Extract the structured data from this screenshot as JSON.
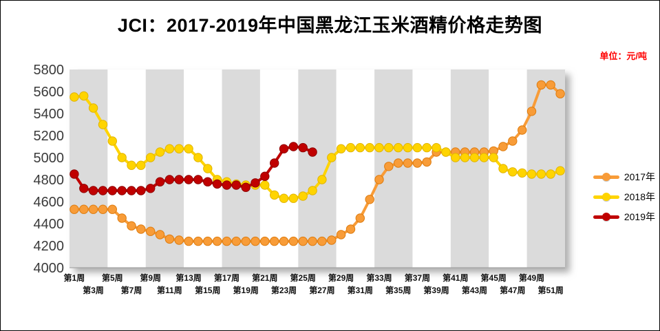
{
  "chart_data": {
    "type": "line",
    "title": "JCI：2017-2019年中国黑龙江玉米酒精价格走势图",
    "unit_label": "单位：元/吨",
    "ylim": [
      4000,
      5800
    ],
    "yticks": [
      4000,
      4200,
      4400,
      4600,
      4800,
      5000,
      5200,
      5400,
      5600,
      5800
    ],
    "x_weeks": 52,
    "xtick_row1": [
      "第1周",
      "第5周",
      "第9周",
      "第13周",
      "第17周",
      "第21周",
      "第25周",
      "第29周",
      "第33周",
      "第37周",
      "第41周",
      "第45周",
      "第49周"
    ],
    "xtick_row2": [
      "第3周",
      "第7周",
      "第11周",
      "第15周",
      "第19周",
      "第23周",
      "第27周",
      "第31周",
      "第35周",
      "第39周",
      "第43周",
      "第47周",
      "第51周"
    ],
    "legend_position": "right",
    "background_stripes": {
      "bands": 13,
      "colors": [
        "#DBDBDB",
        "#FFFFFF"
      ]
    },
    "series": [
      {
        "name": "2017年",
        "color": "#F89C38",
        "edge": "#DD7B0E",
        "values": [
          4530,
          4530,
          4530,
          4530,
          4530,
          4450,
          4380,
          4350,
          4330,
          4300,
          4260,
          4250,
          4240,
          4240,
          4240,
          4240,
          4240,
          4240,
          4240,
          4240,
          4240,
          4240,
          4240,
          4240,
          4240,
          4240,
          4240,
          4250,
          4300,
          4350,
          4450,
          4620,
          4800,
          4920,
          4950,
          4950,
          4950,
          4960,
          5050,
          5050,
          5050,
          5050,
          5050,
          5050,
          5060,
          5100,
          5150,
          5250,
          5420,
          5660,
          5660,
          5580
        ]
      },
      {
        "name": "2018年",
        "color": "#FFD400",
        "edge": "#E0B400",
        "values": [
          5550,
          5560,
          5450,
          5300,
          5150,
          5000,
          4930,
          4930,
          5000,
          5050,
          5080,
          5080,
          5080,
          5000,
          4900,
          4800,
          4780,
          4760,
          4750,
          4750,
          4750,
          4660,
          4630,
          4630,
          4650,
          4700,
          4800,
          5000,
          5080,
          5090,
          5090,
          5090,
          5090,
          5090,
          5090,
          5090,
          5090,
          5090,
          5090,
          5050,
          5000,
          5000,
          5000,
          5000,
          5000,
          4900,
          4870,
          4860,
          4850,
          4850,
          4850,
          4880
        ]
      },
      {
        "name": "2019年",
        "color": "#C00000",
        "edge": "#8E0000",
        "values": [
          4850,
          4720,
          4700,
          4700,
          4700,
          4700,
          4700,
          4700,
          4720,
          4780,
          4800,
          4800,
          4800,
          4800,
          4780,
          4760,
          4750,
          4750,
          4730,
          4770,
          4830,
          4950,
          5080,
          5100,
          5090,
          5050
        ]
      }
    ]
  }
}
